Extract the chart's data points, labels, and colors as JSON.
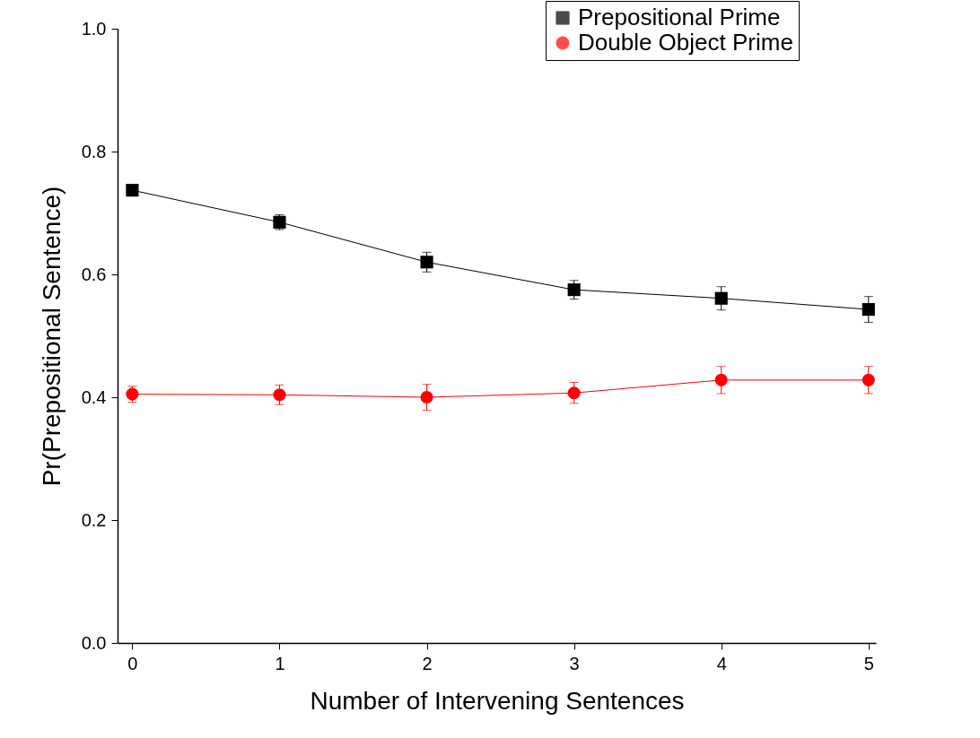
{
  "chart_data": {
    "type": "line",
    "xlabel": "Number of Intervening Sentences",
    "ylabel": "Pr(Prepositional Sentence)",
    "x": [
      0,
      1,
      2,
      3,
      4,
      5
    ],
    "series": [
      {
        "name": "Prepositional Prime",
        "color": "#000000",
        "marker": "square",
        "values": [
          0.737,
          0.685,
          0.62,
          0.575,
          0.561,
          0.543
        ],
        "errors": [
          0.006,
          0.012,
          0.016,
          0.015,
          0.019,
          0.021
        ]
      },
      {
        "name": "Double Object Prime",
        "color": "#ff0000",
        "marker": "circle",
        "values": [
          0.405,
          0.404,
          0.4,
          0.407,
          0.428,
          0.428
        ],
        "errors": [
          0.013,
          0.016,
          0.021,
          0.017,
          0.022,
          0.022
        ]
      }
    ],
    "xlim": [
      -0.1,
      5.05
    ],
    "xticks": [
      0,
      1,
      2,
      3,
      4,
      5
    ],
    "ylim": [
      0,
      1
    ],
    "yticks": [
      {
        "value": 0,
        "label": "0.0"
      },
      0.2,
      0.4,
      0.6,
      0.8,
      {
        "value": 1,
        "label": "1.0"
      }
    ],
    "legend": "top right",
    "grid": false,
    "line_style": "solid"
  }
}
